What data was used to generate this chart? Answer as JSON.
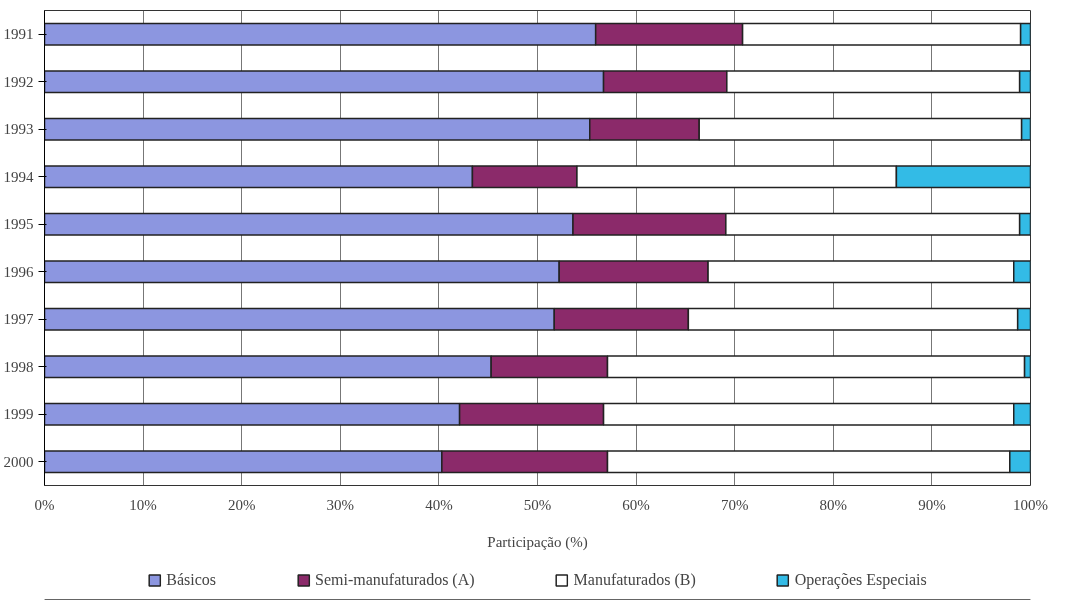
{
  "chart_data": {
    "type": "bar",
    "orientation": "horizontal",
    "stacked": true,
    "xlabel": "Participação (%)",
    "categories": [
      "1991",
      "1992",
      "1993",
      "1994",
      "1995",
      "1996",
      "1997",
      "1998",
      "1999",
      "2000"
    ],
    "series": [
      {
        "name": "Básicos",
        "color": "#8c96e0",
        "values": [
          55.9,
          56.7,
          55.3,
          43.4,
          53.6,
          52.2,
          51.7,
          45.3,
          42.1,
          40.3
        ]
      },
      {
        "name": "Semi-manufaturados (A)",
        "color": "#8b2a6a",
        "values": [
          14.9,
          12.5,
          11.1,
          10.6,
          15.5,
          15.1,
          13.6,
          11.8,
          14.6,
          16.8
        ]
      },
      {
        "name": "Manufaturados (B)",
        "color": "#ffffff",
        "values": [
          28.2,
          29.7,
          32.7,
          32.4,
          29.8,
          31.0,
          33.4,
          42.3,
          41.6,
          40.8
        ]
      },
      {
        "name": "Operações Especiais",
        "color": "#33bbe6",
        "values": [
          1.0,
          1.1,
          0.9,
          13.6,
          1.1,
          1.7,
          1.3,
          0.6,
          1.7,
          2.1
        ]
      }
    ],
    "xlim": [
      0,
      100
    ],
    "xticks": [
      {
        "value": 0,
        "label": "0%"
      },
      {
        "value": 10,
        "label": "10%"
      },
      {
        "value": 20,
        "label": "20%"
      },
      {
        "value": 30,
        "label": "30%"
      },
      {
        "value": 40,
        "label": "40%"
      },
      {
        "value": 50,
        "label": "50%"
      },
      {
        "value": 60,
        "label": "60%"
      },
      {
        "value": 70,
        "label": "70%"
      },
      {
        "value": 80,
        "label": "80%"
      },
      {
        "value": 90,
        "label": "90%"
      },
      {
        "value": 100,
        "label": "100%"
      }
    ],
    "grid": "x",
    "legend": "bottom"
  }
}
